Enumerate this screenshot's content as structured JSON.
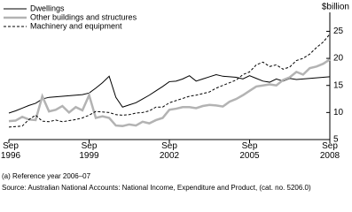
{
  "chart_data": {
    "type": "line",
    "y_label": "$billion",
    "categories": [
      "Sep\n1996",
      null,
      null,
      null,
      null,
      null,
      null,
      null,
      null,
      null,
      null,
      null,
      "Sep\n1999",
      null,
      null,
      null,
      null,
      null,
      null,
      null,
      null,
      null,
      null,
      null,
      "Sep\n2002",
      null,
      null,
      null,
      null,
      null,
      null,
      null,
      null,
      null,
      null,
      null,
      "Sep\n2005",
      null,
      null,
      null,
      null,
      null,
      null,
      null,
      null,
      null,
      null,
      null,
      "Sep\n2008"
    ],
    "series": [
      {
        "name": "Dwellings",
        "color": "#000000",
        "style": "solid",
        "values": [
          9.9,
          10.3,
          10.8,
          11.3,
          11.7,
          12.5,
          12.8,
          12.9,
          13.0,
          13.1,
          13.2,
          13.3,
          13.6,
          14.5,
          15.5,
          16.7,
          12.8,
          11.0,
          11.4,
          11.8,
          12.5,
          13.2,
          14.0,
          14.8,
          15.7,
          15.8,
          16.2,
          16.8,
          15.8,
          16.2,
          16.6,
          17.0,
          16.7,
          16.6,
          16.5,
          16.2,
          16.8,
          16.3,
          15.8,
          15.6,
          16.2,
          15.8,
          16.3,
          16.1,
          16.2,
          16.3,
          16.4,
          16.5,
          16.6
        ]
      },
      {
        "name": "Other buildings and structures",
        "color": "#b3b3b3",
        "style": "thick",
        "values": [
          8.4,
          8.5,
          9.2,
          8.7,
          8.6,
          13.0,
          10.2,
          10.5,
          11.2,
          10.0,
          11.0,
          10.4,
          13.2,
          9.0,
          9.3,
          9.0,
          7.6,
          7.5,
          7.8,
          7.6,
          8.3,
          8.0,
          8.6,
          9.0,
          10.5,
          10.7,
          11.0,
          11.0,
          10.8,
          11.2,
          11.4,
          11.3,
          11.1,
          12.0,
          12.5,
          13.2,
          14.0,
          14.8,
          15.0,
          15.2,
          15.0,
          16.0,
          16.5,
          17.5,
          17.0,
          18.2,
          18.5,
          19.0,
          19.8
        ]
      },
      {
        "name": "Machinery and equipment",
        "color": "#000000",
        "style": "dashed",
        "values": [
          7.3,
          7.4,
          7.5,
          8.7,
          9.5,
          8.4,
          8.3,
          8.6,
          8.3,
          8.5,
          8.7,
          9.0,
          9.5,
          10.2,
          10.1,
          10.0,
          9.6,
          9.5,
          9.6,
          9.9,
          10.0,
          10.3,
          11.0,
          11.0,
          11.8,
          12.2,
          12.6,
          13.0,
          13.2,
          13.5,
          13.8,
          14.5,
          15.0,
          15.5,
          16.0,
          17.0,
          17.5,
          18.8,
          19.3,
          18.5,
          18.8,
          18.0,
          18.4,
          19.6,
          20.0,
          20.8,
          22.0,
          23.0,
          24.5
        ]
      }
    ],
    "ylim": [
      5,
      28.5
    ],
    "yticks": [
      5,
      10,
      15,
      20,
      25
    ],
    "legend": "top-left",
    "footnote": "(a) Reference year 2006–07",
    "source": "Source: Australian National Accounts: National Income, Expenditure and Product, (cat. no. 5206.0)"
  }
}
